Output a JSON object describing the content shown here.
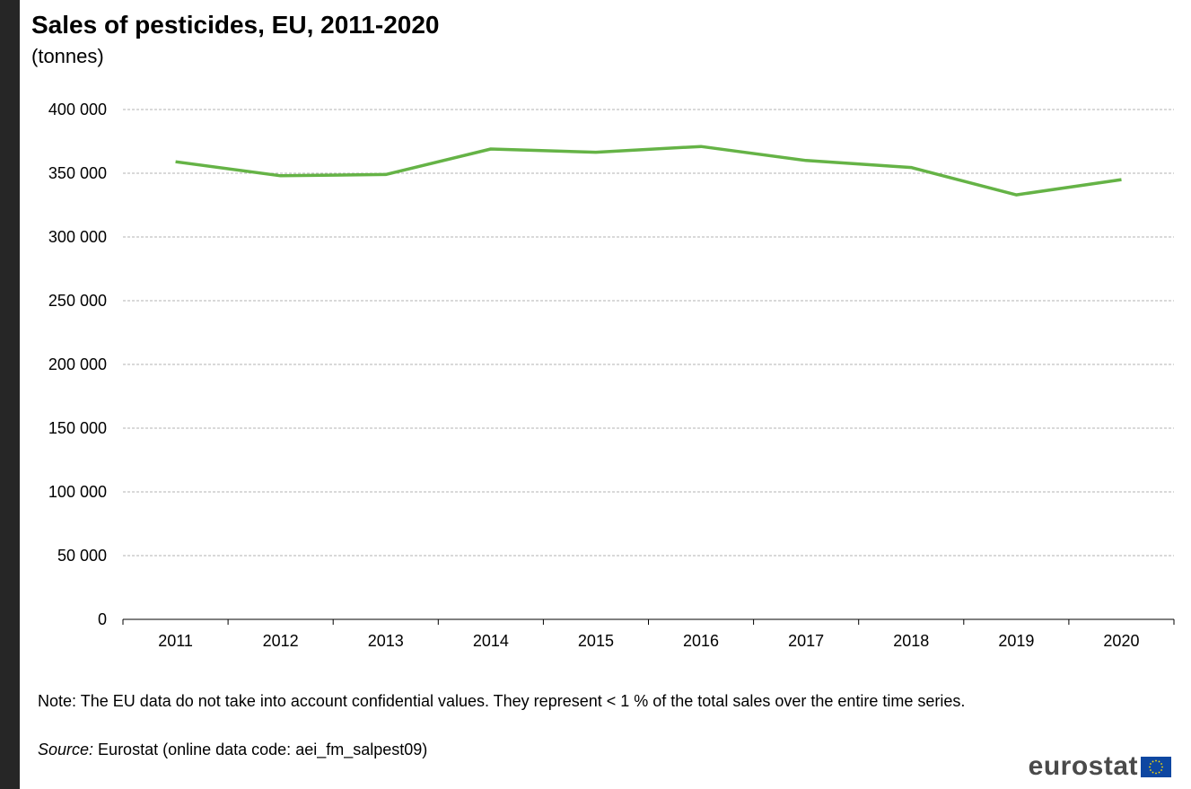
{
  "chart_data": {
    "type": "line",
    "title": "Sales of pesticides, EU, 2011-2020",
    "subtitle": "(tonnes)",
    "categories": [
      "2011",
      "2012",
      "2013",
      "2014",
      "2015",
      "2016",
      "2017",
      "2018",
      "2019",
      "2020"
    ],
    "series": [
      {
        "values": [
          359000,
          348000,
          349000,
          369000,
          366500,
          371000,
          360000,
          354500,
          333000,
          345000
        ]
      }
    ],
    "ylim": [
      0,
      400000
    ],
    "yticks": [
      0,
      50000,
      100000,
      150000,
      200000,
      250000,
      300000,
      350000,
      400000
    ],
    "ytick_labels": [
      "0",
      "50 000",
      "100 000",
      "150 000",
      "200 000",
      "250 000",
      "300 000",
      "350 000",
      "400 000"
    ],
    "grid": true,
    "line_color": "#65b346"
  },
  "footer": {
    "note": "Note: The EU data do not take into account confidential values. They represent < 1 % of the total sales over the entire time series.",
    "source_label": "Source:",
    "source_text": " Eurostat (online data code: aei_fm_salpest09)"
  },
  "logo": {
    "text": "eurostat",
    "flag_icon": "eu-flag-icon"
  }
}
